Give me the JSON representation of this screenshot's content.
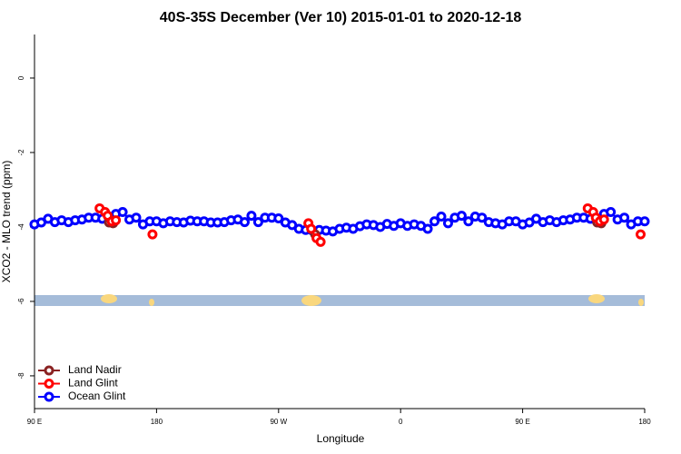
{
  "chart_data": {
    "type": "line",
    "title": "40S-35S December (Ver 10)   2015-01-01 to 2020-12-18",
    "x_label": "Longitude",
    "y_label": "XCO2 - MLO trend (ppm)",
    "xlim": [
      90,
      540
    ],
    "ylim": [
      -8.88,
      1.17
    ],
    "xticks": [
      {
        "value": 90,
        "label": "90 E"
      },
      180,
      {
        "value": 270,
        "label": "90 W"
      },
      {
        "value": 360,
        "label": "0"
      },
      {
        "value": 450,
        "label": "90 E"
      },
      {
        "value": 540,
        "label": "180"
      }
    ],
    "yticks": [
      0,
      -2,
      -4,
      -6,
      -8
    ],
    "legend": "bottom-left",
    "series": [
      {
        "name": "Land Nadir",
        "color": "#8b2323",
        "x": [
          145,
          148,
          160,
          297,
          400,
          505,
          508
        ],
        "values": [
          -3.88,
          -3.9,
          null,
          -4.2,
          null,
          -3.88,
          -3.9
        ]
      },
      {
        "name": "Land Glint",
        "color": "#ff0000",
        "x": [
          138,
          142,
          144,
          147,
          150,
          160,
          177,
          250,
          292,
          294,
          298,
          301,
          400,
          498,
          502,
          504,
          507,
          510,
          520,
          537
        ],
        "values": [
          -3.5,
          -3.6,
          -3.7,
          -3.85,
          -3.82,
          null,
          -4.2,
          null,
          -3.9,
          -4.05,
          -4.3,
          -4.4,
          null,
          -3.5,
          -3.6,
          -3.75,
          -3.85,
          -3.8,
          null,
          -4.2
        ]
      },
      {
        "name": "Ocean Glint",
        "color": "#0000ff",
        "x": [
          90,
          95,
          100,
          105,
          110,
          115,
          120,
          125,
          130,
          135,
          140,
          145,
          150,
          155,
          160,
          165,
          170,
          175,
          180,
          185,
          190,
          195,
          200,
          205,
          210,
          215,
          220,
          225,
          230,
          235,
          240,
          245,
          250,
          255,
          260,
          265,
          270,
          275,
          280,
          285,
          290,
          295,
          300,
          305,
          310,
          315,
          320,
          325,
          330,
          335,
          340,
          345,
          350,
          355,
          360,
          365,
          370,
          375,
          380,
          385,
          390,
          395,
          400,
          405,
          410,
          415,
          420,
          425,
          430,
          435,
          440,
          445,
          450,
          455,
          460,
          465,
          470,
          475,
          480,
          485,
          490,
          495,
          500,
          505,
          510,
          515,
          520,
          525,
          530,
          535,
          540
        ],
        "values": [
          -3.93,
          -3.88,
          -3.78,
          -3.87,
          -3.82,
          -3.87,
          -3.82,
          -3.8,
          -3.75,
          -3.75,
          -3.78,
          -3.8,
          -3.65,
          -3.6,
          -3.8,
          -3.75,
          -3.93,
          -3.85,
          -3.85,
          -3.9,
          -3.85,
          -3.87,
          -3.88,
          -3.83,
          -3.85,
          -3.85,
          -3.88,
          -3.88,
          -3.87,
          -3.82,
          -3.8,
          -3.87,
          -3.7,
          -3.87,
          -3.75,
          -3.75,
          -3.77,
          -3.88,
          -3.95,
          -4.05,
          -4.08,
          -4.1,
          -4.08,
          -4.1,
          -4.12,
          -4.05,
          -4.02,
          -4.05,
          -3.98,
          -3.93,
          -3.95,
          -4.0,
          -3.92,
          -3.97,
          -3.9,
          -3.97,
          -3.93,
          -3.97,
          -4.05,
          -3.85,
          -3.72,
          -3.9,
          -3.75,
          -3.7,
          -3.85,
          -3.72,
          -3.75,
          -3.87,
          -3.9,
          -3.93,
          -3.85,
          -3.85,
          -3.93,
          -3.88,
          -3.78,
          -3.87,
          -3.82,
          -3.87,
          -3.82,
          -3.8,
          -3.75,
          -3.75,
          -3.78,
          -3.8,
          -3.65,
          -3.6,
          -3.8,
          -3.75,
          -3.93,
          -3.85,
          -3.85
        ]
      }
    ]
  }
}
